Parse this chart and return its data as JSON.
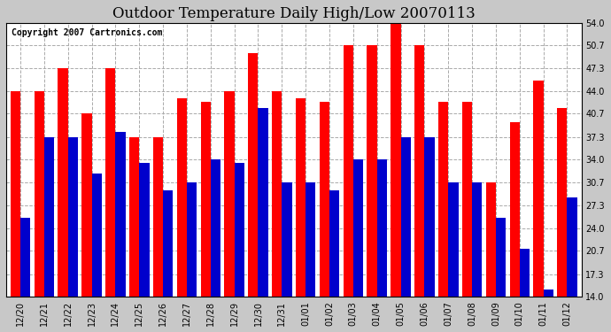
{
  "title": "Outdoor Temperature Daily High/Low 20070113",
  "copyright": "Copyright 2007 Cartronics.com",
  "categories": [
    "12/20",
    "12/21",
    "12/22",
    "12/23",
    "12/24",
    "12/25",
    "12/26",
    "12/27",
    "12/28",
    "12/29",
    "12/30",
    "12/31",
    "01/01",
    "01/02",
    "01/03",
    "01/04",
    "01/05",
    "01/06",
    "01/07",
    "01/08",
    "01/09",
    "01/10",
    "01/11",
    "01/12"
  ],
  "highs": [
    44.0,
    44.0,
    47.3,
    40.7,
    47.3,
    37.3,
    37.3,
    43.0,
    42.5,
    44.0,
    49.5,
    44.0,
    43.0,
    42.5,
    50.7,
    50.7,
    54.0,
    50.7,
    42.5,
    42.5,
    30.7,
    39.5,
    45.5,
    41.5
  ],
  "lows": [
    25.5,
    37.3,
    37.3,
    32.0,
    38.0,
    33.5,
    29.5,
    30.7,
    34.0,
    33.5,
    41.5,
    30.7,
    30.7,
    29.5,
    34.0,
    34.0,
    37.3,
    37.3,
    30.7,
    30.7,
    25.5,
    21.0,
    15.0,
    28.5
  ],
  "high_color": "#ff0000",
  "low_color": "#0000cc",
  "outer_bg_color": "#c8c8c8",
  "plot_bg_color": "#ffffff",
  "ylim": [
    14.0,
    54.0
  ],
  "yticks": [
    14.0,
    17.3,
    20.7,
    24.0,
    27.3,
    30.7,
    34.0,
    37.3,
    40.7,
    44.0,
    47.3,
    50.7,
    54.0
  ],
  "grid_color": "#aaaaaa",
  "bar_width": 0.42,
  "title_fontsize": 12,
  "tick_fontsize": 7,
  "copyright_fontsize": 7
}
